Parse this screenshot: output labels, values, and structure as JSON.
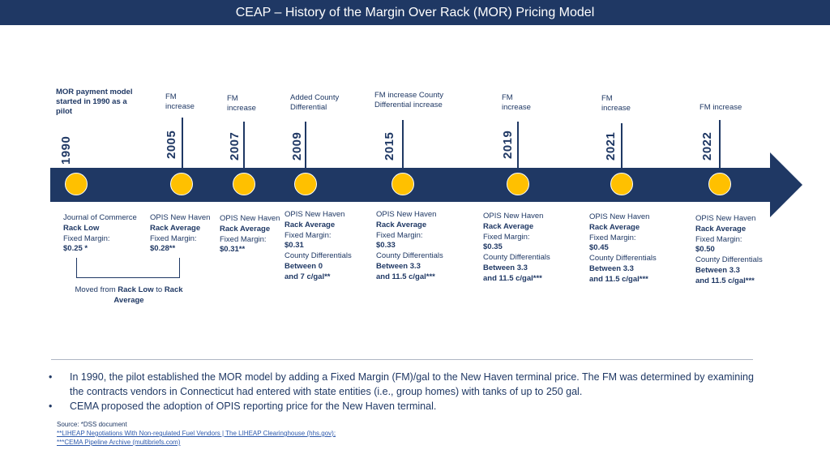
{
  "title": "CEAP – History of the Margin Over Rack (MOR) Pricing Model",
  "milestones": [
    {
      "year": "1990",
      "above": [
        "MOR payment model",
        "started in 1990 as a",
        "pilot"
      ],
      "below": [
        {
          "pre": "Journal of Commerce",
          "bold": ""
        },
        {
          "pre": "",
          "bold": "Rack Low"
        },
        {
          "pre": "Fixed Margin:",
          "bold": ""
        },
        {
          "pre": "",
          "bold": "$0.25 *"
        }
      ]
    },
    {
      "year": "2005",
      "above": [
        "FM",
        "increase"
      ],
      "below": [
        {
          "pre": "OPIS New Haven",
          "bold": ""
        },
        {
          "pre": "",
          "bold": "Rack Average"
        },
        {
          "pre": "Fixed Margin:",
          "bold": ""
        },
        {
          "pre": "",
          "bold": "$0.28**"
        }
      ]
    },
    {
      "year": "2007",
      "above": [
        "FM",
        "increase"
      ],
      "below": [
        {
          "pre": "OPIS New Haven",
          "bold": ""
        },
        {
          "pre": "",
          "bold": "Rack Average"
        },
        {
          "pre": "Fixed Margin:",
          "bold": ""
        },
        {
          "pre": "",
          "bold": "$0.31**"
        }
      ]
    },
    {
      "year": "2009",
      "above": [
        "Added County",
        "Differential"
      ],
      "below": [
        {
          "pre": "OPIS New Haven",
          "bold": ""
        },
        {
          "pre": "",
          "bold": "Rack Average"
        },
        {
          "pre": "Fixed Margin:",
          "bold": ""
        },
        {
          "pre": "",
          "bold": "$0.31"
        },
        {
          "pre": "County Differentials",
          "bold": ""
        },
        {
          "pre": "",
          "bold": "Between 0"
        },
        {
          "pre": "",
          "bold": "and 7 c/gal**"
        }
      ]
    },
    {
      "year": "2015",
      "above": [
        "FM increase County",
        "Differential increase"
      ],
      "below": [
        {
          "pre": "OPIS New Haven",
          "bold": ""
        },
        {
          "pre": "",
          "bold": "Rack Average"
        },
        {
          "pre": "Fixed Margin:",
          "bold": ""
        },
        {
          "pre": "",
          "bold": "$0.33"
        },
        {
          "pre": "County Differentials",
          "bold": ""
        },
        {
          "pre": "",
          "bold": "Between 3.3"
        },
        {
          "pre": "",
          "bold": "and 11.5 c/gal***"
        }
      ]
    },
    {
      "year": "2019",
      "above": [
        "FM",
        "increase"
      ],
      "below": [
        {
          "pre": "OPIS New Haven",
          "bold": ""
        },
        {
          "pre": "",
          "bold": "Rack Average"
        },
        {
          "pre": "Fixed Margin:",
          "bold": ""
        },
        {
          "pre": "",
          "bold": "$0.35"
        },
        {
          "pre": "County Differentials",
          "bold": ""
        },
        {
          "pre": "",
          "bold": "Between 3.3"
        },
        {
          "pre": "",
          "bold": "and 11.5 c/gal***"
        }
      ]
    },
    {
      "year": "2021",
      "above": [
        "FM",
        "increase"
      ],
      "below": [
        {
          "pre": "OPIS New Haven",
          "bold": ""
        },
        {
          "pre": "",
          "bold": "Rack Average"
        },
        {
          "pre": "Fixed Margin:",
          "bold": ""
        },
        {
          "pre": "",
          "bold": "$0.45"
        },
        {
          "pre": "County Differentials",
          "bold": ""
        },
        {
          "pre": "",
          "bold": "Between 3.3"
        },
        {
          "pre": "",
          "bold": "and 11.5 c/gal***"
        }
      ]
    },
    {
      "year": "2022",
      "above": [
        "FM increase"
      ],
      "below": [
        {
          "pre": "OPIS New Haven",
          "bold": ""
        },
        {
          "pre": "",
          "bold": "Rack Average"
        },
        {
          "pre": "Fixed Margin:",
          "bold": ""
        },
        {
          "pre": "",
          "bold": "$0.50"
        },
        {
          "pre": "County Differentials",
          "bold": ""
        },
        {
          "pre": "",
          "bold": "Between 3.3"
        },
        {
          "pre": "",
          "bold": "and 11.5 c/gal***"
        }
      ]
    }
  ],
  "bracket_note": {
    "part1": "Moved from ",
    "bold1": "Rack Low",
    "part2": " to ",
    "bold2": "Rack",
    "line2": "Average"
  },
  "bullets": [
    "In 1990, the pilot established the MOR model by adding a Fixed Margin (FM)/gal to the New Haven terminal price. The FM was determined by examining the contracts vendors in Connecticut had entered with state entities (i.e., group homes) with tanks of up to 250 gal.",
    "CEMA proposed the adoption of OPIS reporting price for the New Haven terminal."
  ],
  "source": {
    "label": "Source: *DSS document",
    "link1": "**LIHEAP Negotiations With Non-regulated Fuel Vendors | The LIHEAP Clearinghouse (hhs.gov);",
    "link2": "***CEMA Pipeline Archive (multibriefs.com)"
  },
  "colors": {
    "navy": "#1f3864",
    "dot": "#ffc000"
  }
}
